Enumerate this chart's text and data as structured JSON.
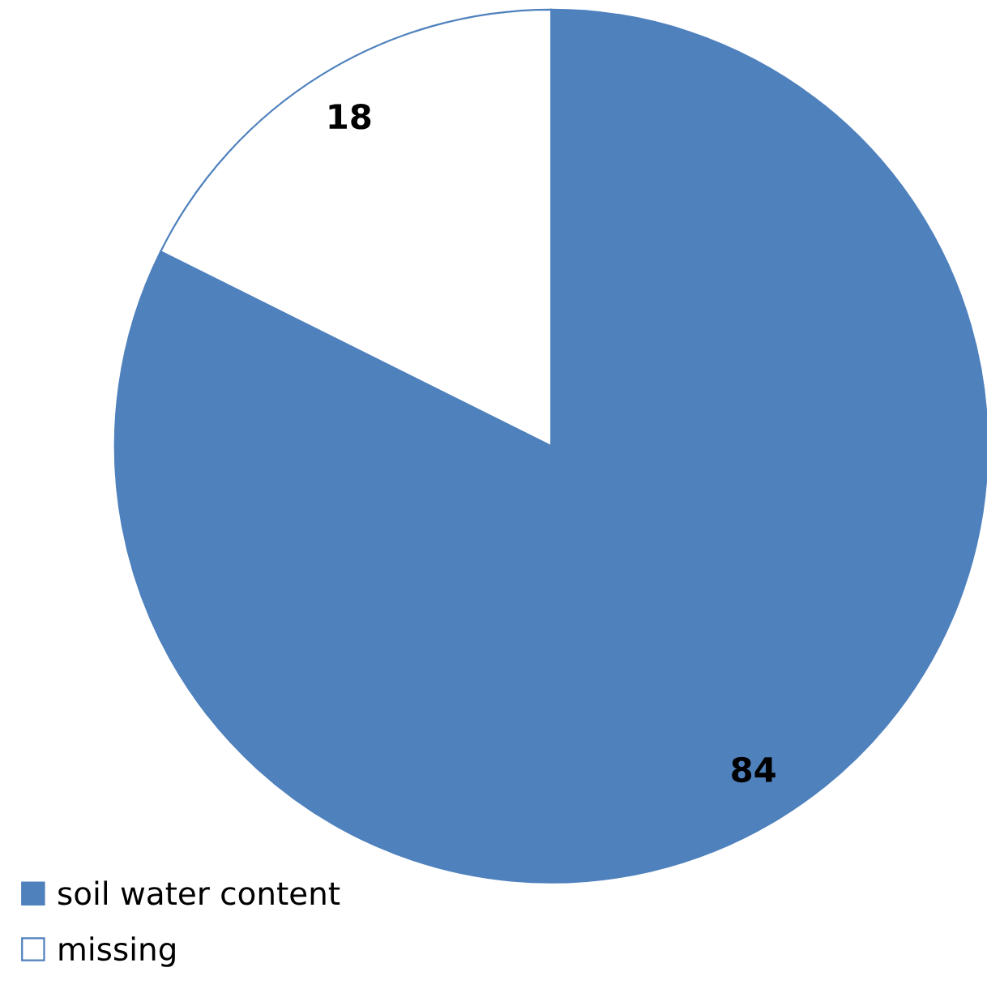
{
  "chart_data": {
    "type": "pie",
    "categories": [
      "soil water content",
      "missing"
    ],
    "values": [
      84,
      18
    ],
    "colors": [
      "#4f81bd",
      "#ffffff"
    ],
    "data_labels": true,
    "legend": "bottom left"
  }
}
